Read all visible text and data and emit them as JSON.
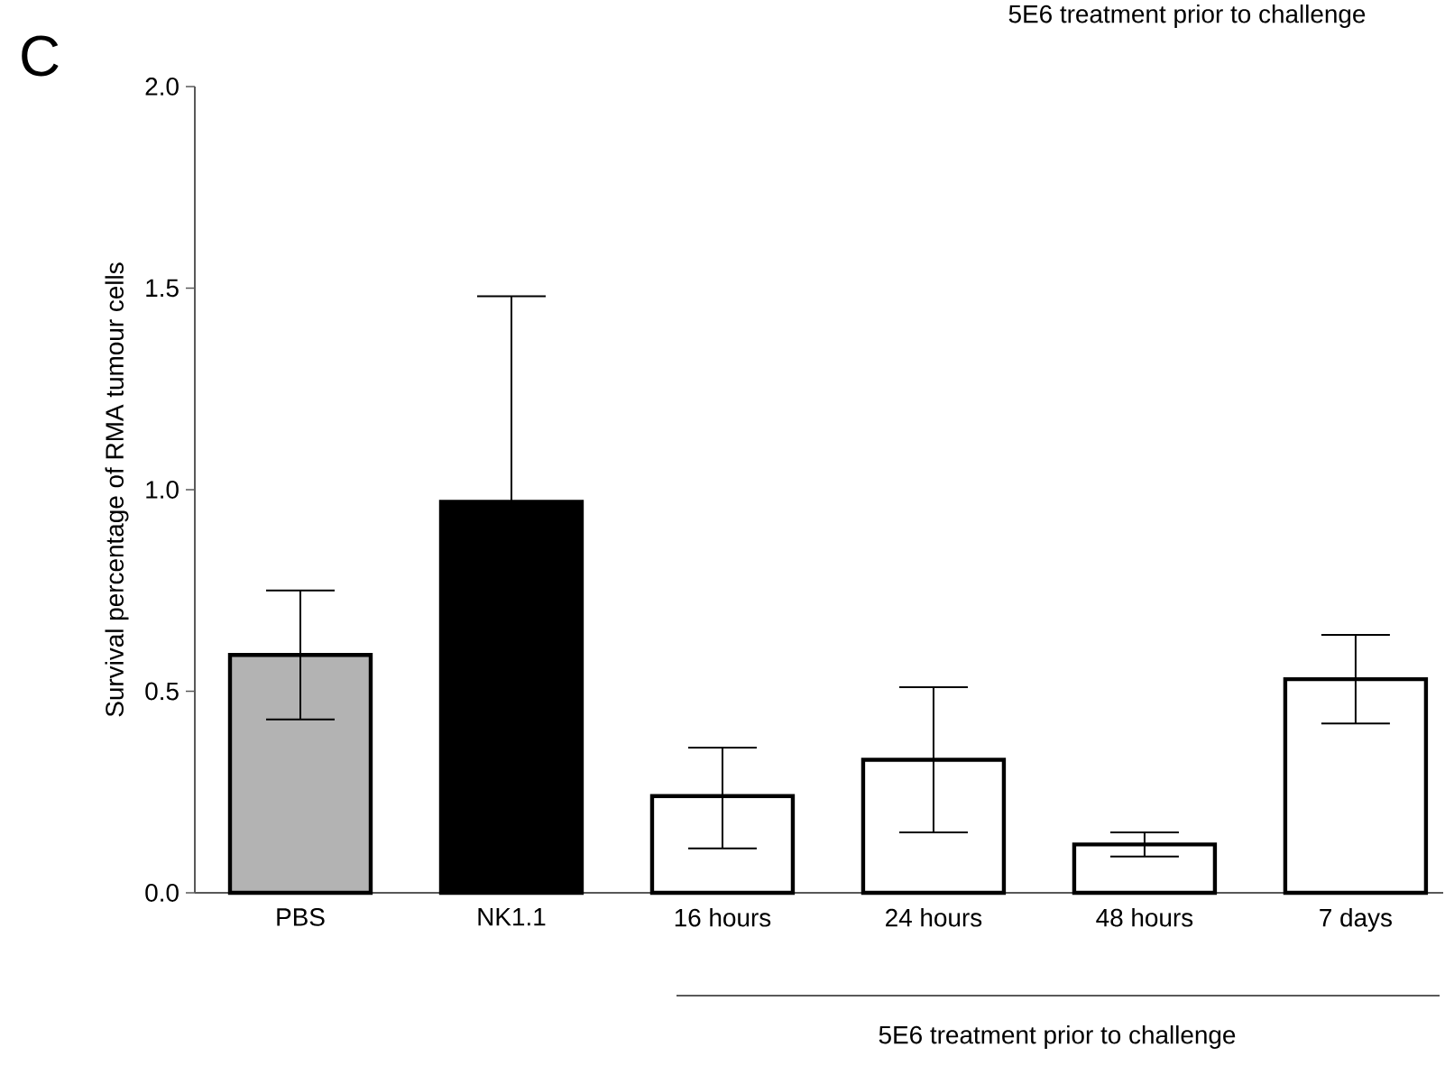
{
  "chart_data": {
    "type": "bar",
    "ylabel": "Survival percentage of RMA tumour cells",
    "categories": [
      "PBS",
      "NK1.1",
      "16 hours",
      "24 hours",
      "48 hours",
      "7 days"
    ],
    "values": [
      0.59,
      0.97,
      0.24,
      0.33,
      0.12,
      0.53
    ],
    "errors": [
      [
        0.43,
        0.75
      ],
      [
        0.97,
        1.48
      ],
      [
        0.11,
        0.36
      ],
      [
        0.15,
        0.51
      ],
      [
        0.09,
        0.15
      ],
      [
        0.42,
        0.64
      ]
    ],
    "colors": [
      "#b3b3b3",
      "#000000",
      "#ffffff",
      "#ffffff",
      "#ffffff",
      "#ffffff"
    ],
    "ylim": [
      0,
      2
    ],
    "yticks": [
      {
        "value": 0,
        "label": "0.0"
      },
      {
        "value": 0.5,
        "label": "0.5"
      },
      {
        "value": 1,
        "label": "1.0"
      },
      {
        "value": 1.5,
        "label": "1.5"
      },
      {
        "value": 2,
        "label": "2.0"
      }
    ],
    "annotations": [
      "C",
      "5E6 treatment prior to challenge",
      "5E6 treatment prior to challenge"
    ],
    "grid": false
  }
}
